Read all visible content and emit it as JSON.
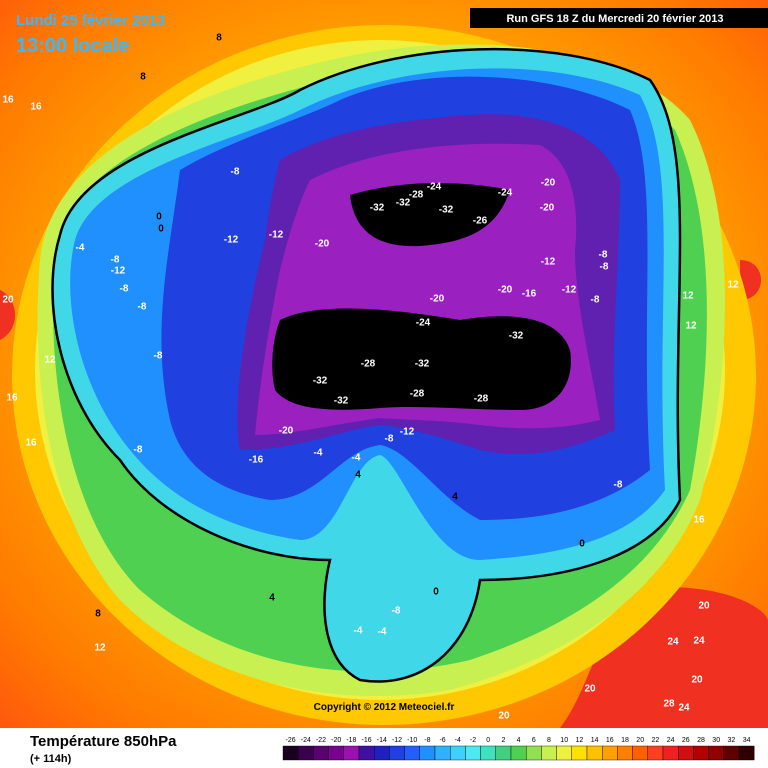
{
  "header": {
    "date": "Lundi 25 février 2013",
    "time": "13:00 locale",
    "run": "Run GFS 18 Z du Mercredi 20 février 2013"
  },
  "footer": {
    "title": "Température 850hPa",
    "lead": "(+ 114h)",
    "copyright": "Copyright © 2012 Meteociel.fr"
  },
  "colorbar": {
    "ticks": [
      -26,
      -24,
      -22,
      -20,
      -18,
      -16,
      -14,
      -12,
      -10,
      -8,
      -6,
      -4,
      -2,
      0,
      2,
      4,
      6,
      8,
      10,
      12,
      14,
      16,
      18,
      20,
      22,
      24,
      26,
      28,
      30,
      32,
      34
    ],
    "colors": [
      "#1a0020",
      "#3a0050",
      "#5a0070",
      "#7a0090",
      "#9a10b0",
      "#4010a0",
      "#2020c0",
      "#2040e0",
      "#2060ff",
      "#2090ff",
      "#30b0ff",
      "#40d0ff",
      "#50e8f0",
      "#40e0c0",
      "#40d080",
      "#50d050",
      "#90e050",
      "#c8f050",
      "#f0f040",
      "#ffe000",
      "#ffc000",
      "#ffa000",
      "#ff8000",
      "#ff6000",
      "#ff4020",
      "#f02020",
      "#d01010",
      "#b00000",
      "#900000",
      "#600000",
      "#300000"
    ]
  },
  "map_labels": [
    "-32",
    "-32",
    "-28",
    "-32",
    "-24",
    "-26",
    "-24",
    "-20",
    "-20",
    "-20",
    "-12",
    "-8",
    "-12",
    "-12",
    "-20",
    "-16",
    "-12",
    "-8",
    "-8",
    "-8",
    "-20",
    "-24",
    "-32",
    "-28",
    "-32",
    "-32",
    "-32",
    "-28",
    "-28",
    "-20",
    "-16",
    "-12",
    "-8",
    "-4",
    "-4",
    "-8",
    "-8",
    "-8",
    "-12",
    "-8",
    "-8",
    "0",
    "0",
    "-4",
    "4",
    "4",
    "4",
    "0",
    "-8",
    "-4",
    "-4",
    "8",
    "8",
    "8",
    "12",
    "12",
    "16",
    "16",
    "16",
    "16",
    "20",
    "20",
    "20",
    "24",
    "24",
    "28",
    "24",
    "20",
    "16",
    "12",
    "12",
    "12",
    "20",
    "0",
    "-8"
  ]
}
